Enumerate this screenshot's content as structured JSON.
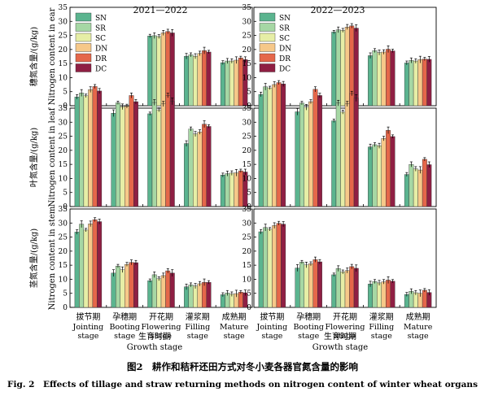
{
  "colors": {
    "SN": "#5bb48f",
    "SR": "#a6d7a4",
    "SC": "#e6eea6",
    "DN": "#f6c889",
    "DR": "#e5674a",
    "DC": "#8f1f43"
  },
  "figure": {
    "caption_cn": "图2　耕作和秸秆还田方式对冬小麦各器官氮含量的影响",
    "caption_en": "Fig. 2　Effects of tillage and straw returning methods on nitrogen content of winter wheat organs",
    "xaxis_cn": "生育时期",
    "xaxis_en": "Growth stage",
    "period_left": "2021—2022",
    "period_right": "2022—2023"
  },
  "stages": [
    {
      "cn": "拔节期",
      "en1": "Jointing",
      "en2": "stage"
    },
    {
      "cn": "孕穗期",
      "en1": "Booting",
      "en2": "stage"
    },
    {
      "cn": "开花期",
      "en1": "Flowering",
      "en2": "stage"
    },
    {
      "cn": "灌浆期",
      "en1": "Filling",
      "en2": "stage"
    },
    {
      "cn": "成熟期",
      "en1": "Mature",
      "en2": "stage"
    }
  ],
  "rows": [
    {
      "cn": "穗氮含量/(g/kg)",
      "en": "Nitrogen content in ear"
    },
    {
      "cn": "叶氮含量/(g/kg)",
      "en": "Nitrogen content in leaf"
    },
    {
      "cn": "茎氮含量/(g/kg)",
      "en": "Nitrogen content in stem"
    }
  ],
  "chart_data": {
    "type": "bar",
    "series_names": [
      "SN",
      "SR",
      "SC",
      "DN",
      "DR",
      "DC"
    ],
    "categories": [
      "拔节期 Jointing stage",
      "孕穗期 Booting stage",
      "开花期 Flowering stage",
      "灌浆期 Filling stage",
      "成熟期 Mature stage"
    ],
    "ylim": [
      0,
      35
    ],
    "yticks": [
      0,
      5,
      10,
      15,
      20,
      25,
      30,
      35
    ],
    "legend": "top-left",
    "panels": [
      {
        "organ": "ear",
        "period": "2021—2022",
        "row": 0,
        "col": 0,
        "values": [
          null,
          null,
          [
            24.8,
            24.9,
            24.6,
            25.9,
            26.4,
            25.9
          ],
          [
            17.6,
            18.1,
            17.6,
            18.6,
            19.6,
            19.1
          ],
          [
            15.3,
            15.9,
            15.9,
            16.2,
            17.0,
            16.4
          ]
        ]
      },
      {
        "organ": "ear",
        "period": "2022—2023",
        "row": 0,
        "col": 1,
        "values": [
          null,
          null,
          [
            26.2,
            27.0,
            26.8,
            28.0,
            28.4,
            27.6
          ],
          [
            17.8,
            19.6,
            18.9,
            19.1,
            20.1,
            19.5
          ],
          [
            15.2,
            16.1,
            15.9,
            16.4,
            16.6,
            16.5
          ]
        ]
      },
      {
        "organ": "leaf",
        "period": "2021—2022",
        "row": 1,
        "col": 0,
        "values": [
          [
            39.0,
            40.4,
            39.4,
            41.6,
            42.7,
            41.1
          ],
          [
            33.2,
            36.9,
            35.5,
            35.7,
            39.5,
            37.3
          ],
          [
            33.0,
            37.0,
            34.4,
            36.5,
            39.5,
            37.4
          ],
          [
            22.4,
            27.6,
            25.8,
            26.5,
            29.3,
            28.5
          ],
          [
            11.2,
            11.7,
            11.9,
            12.0,
            12.7,
            12.3
          ]
        ]
      },
      {
        "organ": "leaf",
        "period": "2022—2023",
        "row": 1,
        "col": 1,
        "values": [
          [
            39.9,
            42.6,
            42.2,
            43.4,
            44.1,
            43.6
          ],
          [
            33.7,
            36.8,
            35.3,
            37.3,
            41.7,
            39.5
          ],
          [
            30.5,
            36.8,
            33.6,
            36.5,
            40.2,
            38.6
          ],
          [
            21.2,
            22.0,
            21.6,
            24.2,
            27.1,
            24.9
          ],
          [
            11.4,
            15.0,
            13.4,
            13.0,
            16.8,
            14.9
          ]
        ]
      },
      {
        "organ": "stem",
        "period": "2021—2022",
        "row": 2,
        "col": 0,
        "values": [
          [
            26.8,
            29.6,
            27.5,
            29.7,
            31.2,
            30.5
          ],
          [
            12.2,
            14.7,
            13.4,
            15.3,
            16.0,
            15.9
          ],
          [
            9.5,
            11.6,
            10.2,
            11.3,
            13.0,
            12.2
          ],
          [
            7.3,
            8.0,
            7.6,
            8.4,
            8.9,
            8.9
          ],
          [
            4.5,
            5.1,
            4.7,
            4.9,
            5.4,
            5.2
          ]
        ]
      },
      {
        "organ": "stem",
        "period": "2022—2023",
        "row": 2,
        "col": 1,
        "values": [
          [
            26.9,
            28.4,
            27.8,
            29.1,
            29.9,
            29.6
          ],
          [
            14.0,
            16.1,
            15.1,
            15.5,
            17.0,
            16.2
          ],
          [
            11.6,
            13.8,
            12.6,
            13.1,
            14.5,
            13.9
          ],
          [
            8.3,
            9.2,
            8.7,
            9.1,
            9.7,
            9.3
          ],
          [
            4.6,
            5.7,
            5.2,
            5.0,
            6.1,
            5.3
          ]
        ]
      }
    ]
  }
}
